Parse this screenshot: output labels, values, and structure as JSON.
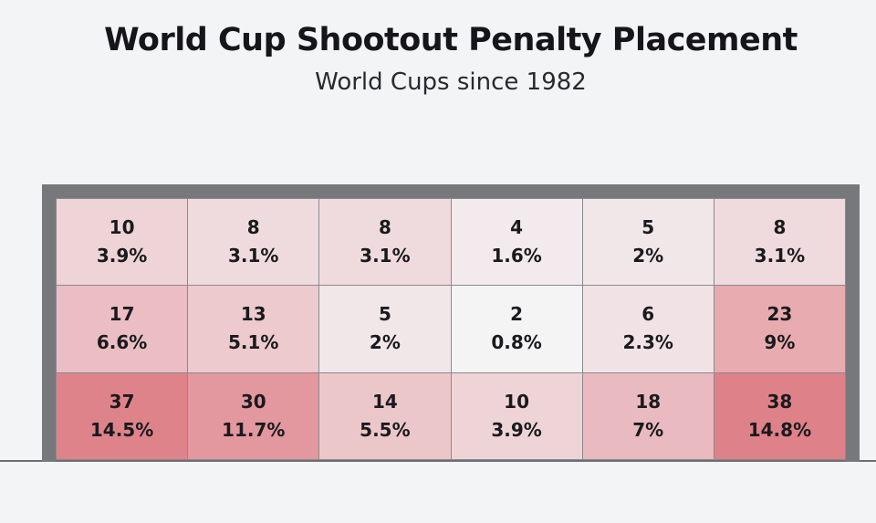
{
  "chart_data": {
    "type": "heatmap",
    "title": "World Cup Shootout Penalty Placement",
    "subtitle": "World Cups since 1982",
    "rows": 3,
    "cols": 6,
    "cells": [
      [
        {
          "count": "10",
          "pct": "3.9%",
          "value": 3.9
        },
        {
          "count": "8",
          "pct": "3.1%",
          "value": 3.1
        },
        {
          "count": "8",
          "pct": "3.1%",
          "value": 3.1
        },
        {
          "count": "4",
          "pct": "1.6%",
          "value": 1.6
        },
        {
          "count": "5",
          "pct": "2%",
          "value": 2
        },
        {
          "count": "8",
          "pct": "3.1%",
          "value": 3.1
        }
      ],
      [
        {
          "count": "17",
          "pct": "6.6%",
          "value": 6.6
        },
        {
          "count": "13",
          "pct": "5.1%",
          "value": 5.1
        },
        {
          "count": "5",
          "pct": "2%",
          "value": 2
        },
        {
          "count": "2",
          "pct": "0.8%",
          "value": 0.8
        },
        {
          "count": "6",
          "pct": "2.3%",
          "value": 2.3
        },
        {
          "count": "23",
          "pct": "9%",
          "value": 9
        }
      ],
      [
        {
          "count": "37",
          "pct": "14.5%",
          "value": 14.5
        },
        {
          "count": "30",
          "pct": "11.7%",
          "value": 11.7
        },
        {
          "count": "14",
          "pct": "5.5%",
          "value": 5.5
        },
        {
          "count": "10",
          "pct": "3.9%",
          "value": 3.9
        },
        {
          "count": "18",
          "pct": "7%",
          "value": 7
        },
        {
          "count": "38",
          "pct": "14.8%",
          "value": 14.8
        }
      ]
    ],
    "color_scale": {
      "low": "#f4f4f5",
      "high": "#df8189",
      "min": 0.8,
      "max": 14.8
    }
  }
}
